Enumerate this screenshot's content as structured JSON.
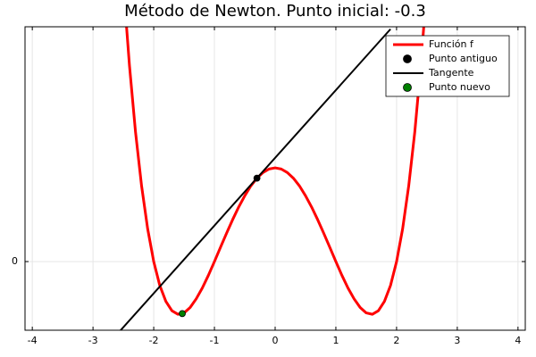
{
  "chart_data": {
    "type": "line",
    "title": "Método de Newton. Punto inicial: -0.3",
    "xlim": [
      -4.12,
      4.12
    ],
    "xticks": [
      -4,
      -3,
      -2,
      -1,
      0,
      1,
      2,
      3,
      4
    ],
    "ylim": [
      -2.93,
      10.02
    ],
    "yticks": [
      0
    ],
    "grid": true,
    "legend": "top-right",
    "series": [
      {
        "name": "Función f",
        "color": "#ff0000",
        "mode": "line",
        "x": [
          -2.5,
          -2.4,
          -2.3,
          -2.2,
          -2.1,
          -2.0,
          -1.9,
          -1.8,
          -1.7,
          -1.6,
          -1.5,
          -1.4,
          -1.3,
          -1.2,
          -1.1,
          -1.0,
          -0.9,
          -0.8,
          -0.7,
          -0.6,
          -0.5,
          -0.4,
          -0.3,
          -0.2,
          -0.1,
          0,
          0.1,
          0.2,
          0.3,
          0.4,
          0.5,
          0.6,
          0.7,
          0.8,
          0.9,
          1.0,
          1.1,
          1.2,
          1.3,
          1.4,
          1.5,
          1.6,
          1.7,
          1.8,
          1.9,
          2.0,
          2.1,
          2.2,
          2.3,
          2.4,
          2.5
        ],
        "values": [
          11.81,
          8.38,
          5.53,
          3.23,
          1.4,
          0,
          -1.02,
          -1.7,
          -2.1,
          -2.25,
          -2.19,
          -1.96,
          -1.59,
          -1.13,
          -0.59,
          0,
          0.61,
          1.21,
          1.79,
          2.33,
          2.81,
          3.23,
          3.56,
          3.8,
          3.95,
          4,
          3.95,
          3.8,
          3.56,
          3.23,
          2.81,
          2.33,
          1.79,
          1.21,
          0.61,
          0,
          -0.59,
          -1.13,
          -1.59,
          -1.96,
          -2.19,
          -2.25,
          -2.1,
          -1.7,
          -1.02,
          0,
          1.4,
          3.23,
          5.53,
          8.38,
          11.81
        ]
      },
      {
        "name": "Punto antiguo",
        "color": "#000000",
        "mode": "marker",
        "x": [
          -0.3
        ],
        "values": [
          3.56
        ]
      },
      {
        "name": "Tangente",
        "color": "#000000",
        "mode": "line",
        "x": [
          -2.6,
          1.9
        ],
        "values": [
          -3.09,
          9.92
        ]
      },
      {
        "name": "Punto nuevo",
        "color": "#008000",
        "mode": "marker",
        "x": [
          -1.53
        ],
        "values": [
          -2.22
        ]
      }
    ]
  }
}
